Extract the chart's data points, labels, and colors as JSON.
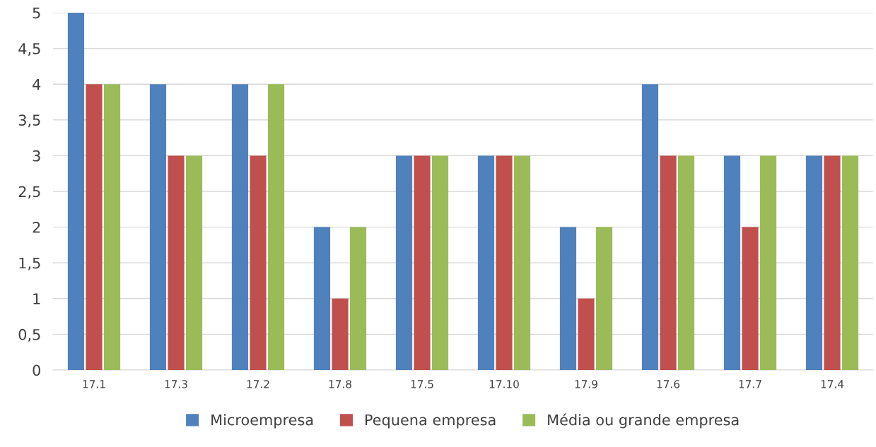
{
  "chart_data": {
    "type": "bar",
    "categories": [
      "17.1",
      "17.3",
      "17.2",
      "17.8",
      "17.5",
      "17.10",
      "17.9",
      "17.6",
      "17.7",
      "17.4"
    ],
    "series": [
      {
        "name": "Microempresa",
        "color": "#4f81bd",
        "values": [
          5,
          4,
          4,
          2,
          3,
          3,
          2,
          4,
          3,
          3
        ]
      },
      {
        "name": "Pequena empresa",
        "color": "#c0504d",
        "values": [
          4,
          3,
          3,
          1,
          3,
          3,
          1,
          3,
          2,
          3
        ]
      },
      {
        "name": "Média ou grande empresa",
        "color": "#9bbb59",
        "values": [
          4,
          3,
          4,
          2,
          3,
          3,
          2,
          3,
          3,
          3
        ]
      }
    ],
    "ylim": [
      0,
      5
    ],
    "yticks": [
      0,
      {
        "value": 0.5,
        "label": "0,5"
      },
      1,
      {
        "value": 1.5,
        "label": "1,5"
      },
      2,
      {
        "value": 2.5,
        "label": "2,5"
      },
      3,
      {
        "value": 3.5,
        "label": "3,5"
      },
      4,
      {
        "value": 4.5,
        "label": "4,5"
      },
      5
    ],
    "grid": "y",
    "legend": "bottom"
  }
}
